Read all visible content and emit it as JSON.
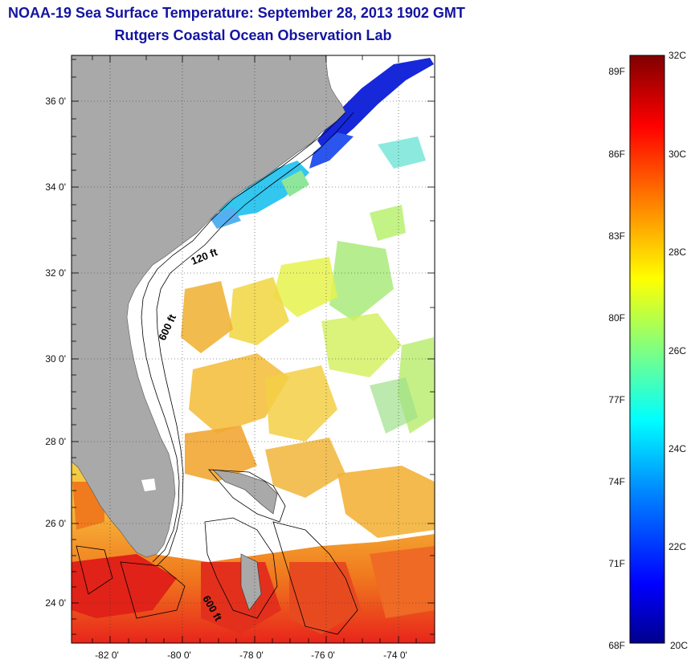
{
  "titles": {
    "line1": "NOAA-19 Sea Surface Temperature:  September 28, 2013 1902 GMT",
    "line2": "Rutgers Coastal Ocean Observation Lab"
  },
  "map": {
    "lat_ticks": [
      {
        "value": 36,
        "label": "36 0'"
      },
      {
        "value": 34,
        "label": "34 0'"
      },
      {
        "value": 32,
        "label": "32 0'"
      },
      {
        "value": 30,
        "label": "30 0'"
      },
      {
        "value": 28,
        "label": "28 0'"
      },
      {
        "value": 26,
        "label": "26 0'"
      },
      {
        "value": 24,
        "label": "24 0'"
      }
    ],
    "lon_ticks": [
      {
        "value": -82,
        "label": "-82 0'"
      },
      {
        "value": -80,
        "label": "-80 0'"
      },
      {
        "value": -78,
        "label": "-78 0'"
      },
      {
        "value": -76,
        "label": "-76 0'"
      },
      {
        "value": -74,
        "label": "-74 0'"
      }
    ],
    "contour_labels": [
      {
        "text": "120 ft"
      },
      {
        "text": "600 ft"
      },
      {
        "text": "600 ft"
      }
    ],
    "colors": {
      "land": "#a9a9a9",
      "cloud": "#ffffff"
    }
  },
  "colorbar": {
    "left_labels": [
      "89F",
      "86F",
      "83F",
      "80F",
      "77F",
      "74F",
      "71F",
      "68F"
    ],
    "right_labels": [
      "32C",
      "30C",
      "28C",
      "26C",
      "24C",
      "22C",
      "20C"
    ],
    "min_c": 20,
    "max_c": 32,
    "colors": [
      "#00008c",
      "#0000ff",
      "#0080ff",
      "#00ffff",
      "#80ff80",
      "#ffff00",
      "#ff8000",
      "#ff0000",
      "#800000"
    ]
  }
}
